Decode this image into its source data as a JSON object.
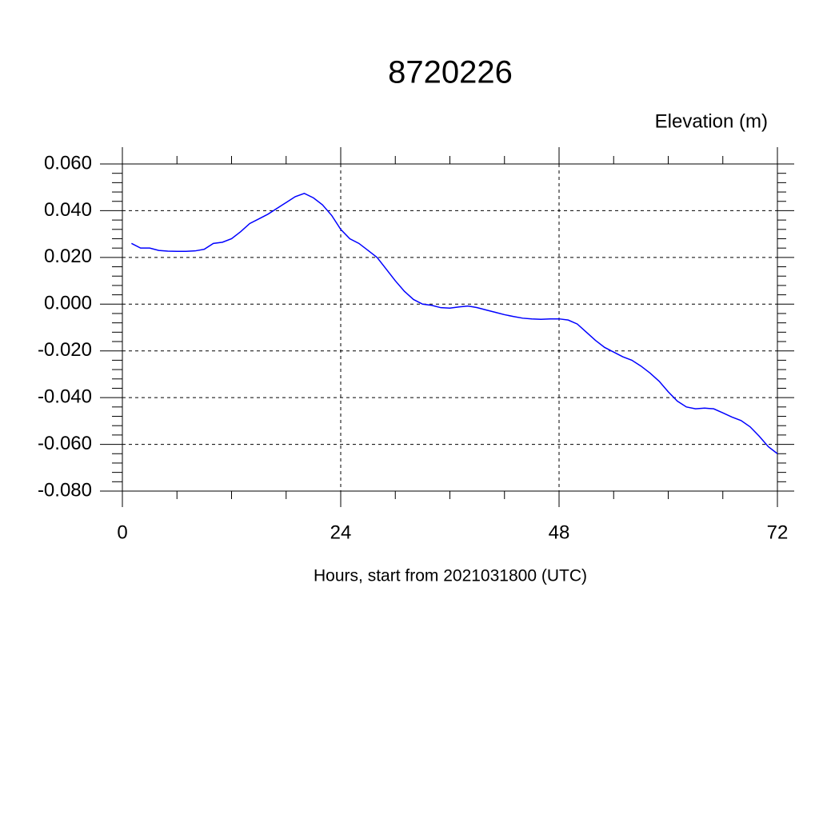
{
  "chart_data": {
    "type": "line",
    "title": "8720226",
    "ylabel": "Elevation (m)",
    "xlabel": "Hours, start from 2021031800 (UTC)",
    "x": [
      1,
      2,
      3,
      4,
      5,
      6,
      7,
      8,
      9,
      10,
      11,
      12,
      13,
      14,
      15,
      16,
      17,
      18,
      19,
      20,
      21,
      22,
      23,
      24,
      25,
      26,
      27,
      28,
      29,
      30,
      31,
      32,
      33,
      34,
      35,
      36,
      37,
      38,
      39,
      40,
      41,
      42,
      43,
      44,
      45,
      46,
      47,
      48,
      49,
      50,
      51,
      52,
      53,
      54,
      55,
      56,
      57,
      58,
      59,
      60,
      61,
      62,
      63,
      64,
      65,
      66,
      67,
      68,
      69,
      70,
      71,
      72
    ],
    "series": [
      {
        "color": "#0000ff",
        "values": [
          0.026,
          0.024,
          0.024,
          0.023,
          0.0227,
          0.0226,
          0.0226,
          0.0228,
          0.0235,
          0.026,
          0.0265,
          0.028,
          0.031,
          0.0345,
          0.0365,
          0.0385,
          0.041,
          0.0435,
          0.046,
          0.0474,
          0.0455,
          0.0425,
          0.038,
          0.032,
          0.028,
          0.026,
          0.023,
          0.02,
          0.015,
          0.01,
          0.0055,
          0.002,
          0.0,
          -0.0005,
          -0.0015,
          -0.0017,
          -0.0012,
          -0.0008,
          -0.0015,
          -0.0025,
          -0.0035,
          -0.0045,
          -0.0053,
          -0.006,
          -0.0063,
          -0.0065,
          -0.0063,
          -0.0063,
          -0.0068,
          -0.0085,
          -0.012,
          -0.0155,
          -0.0185,
          -0.0205,
          -0.0225,
          -0.024,
          -0.0265,
          -0.0295,
          -0.033,
          -0.0375,
          -0.0415,
          -0.044,
          -0.0448,
          -0.0445,
          -0.0448,
          -0.0465,
          -0.0483,
          -0.0498,
          -0.0525,
          -0.0565,
          -0.061,
          -0.064
        ]
      }
    ],
    "xlim": [
      0,
      72
    ],
    "xticks": [
      0,
      24,
      48,
      72
    ],
    "ylim": [
      -0.08,
      0.06
    ],
    "yticks": [
      {
        "value": 0.06,
        "label": "0.060"
      },
      {
        "value": 0.04,
        "label": "0.040"
      },
      {
        "value": 0.02,
        "label": "0.020"
      },
      {
        "value": 0,
        "label": "0.000"
      },
      {
        "value": -0.02,
        "label": "-0.020"
      },
      {
        "value": -0.04,
        "label": "-0.040"
      },
      {
        "value": -0.06,
        "label": "-0.060"
      },
      {
        "value": -0.08,
        "label": "-0.080"
      }
    ],
    "grid": true
  }
}
